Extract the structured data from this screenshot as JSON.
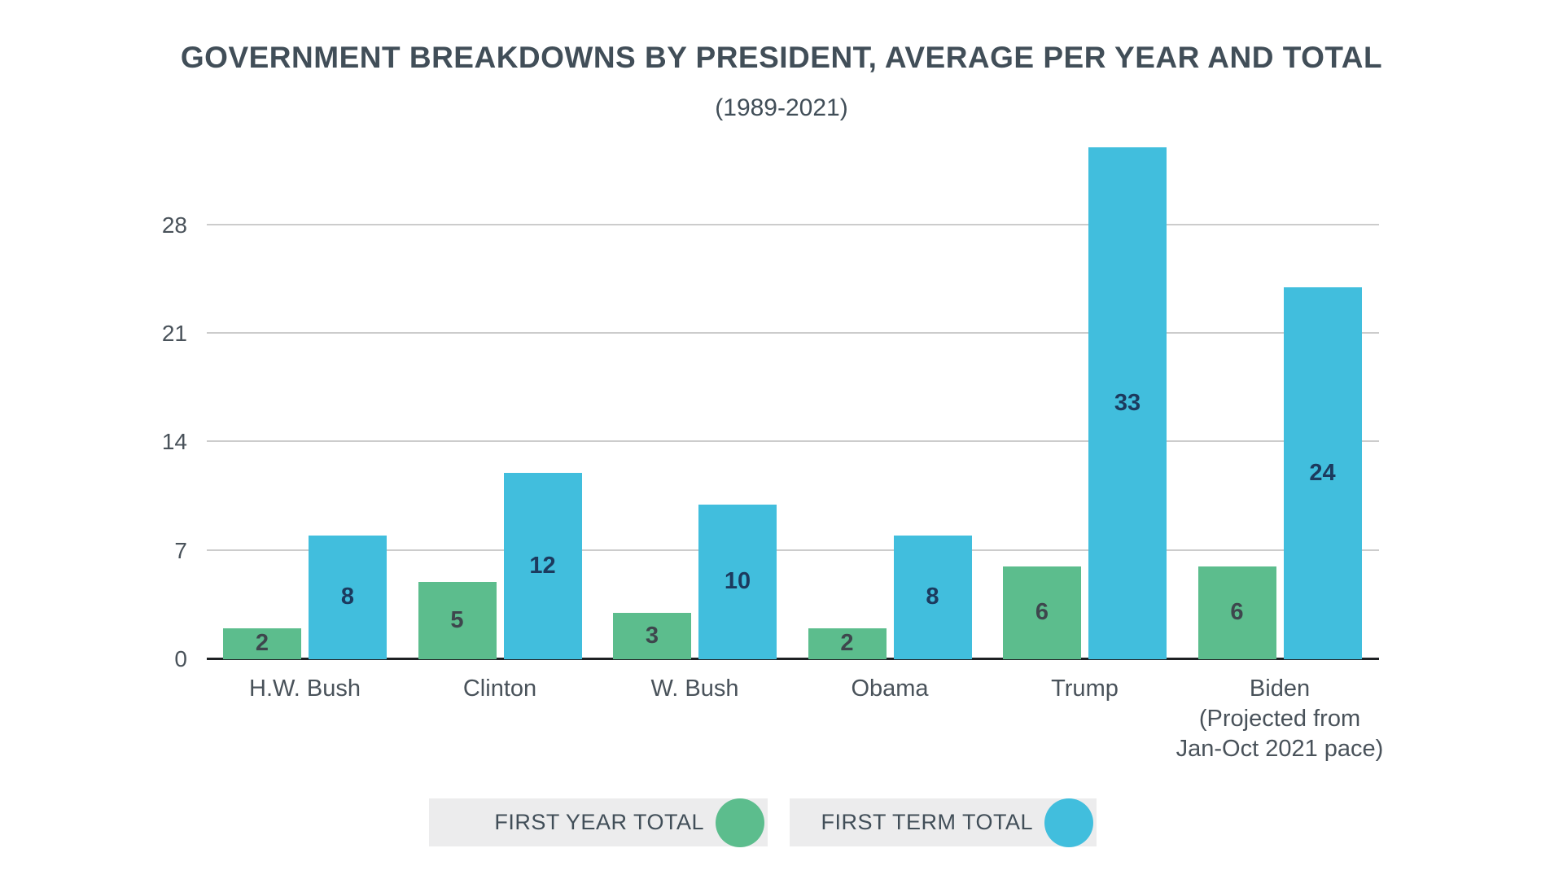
{
  "title": "GOVERNMENT BREAKDOWNS BY PRESIDENT, AVERAGE PER YEAR AND TOTAL",
  "subtitle": "(1989-2021)",
  "chart_data": {
    "type": "bar",
    "categories": [
      "H.W. Bush",
      "Clinton",
      "W. Bush",
      "Obama",
      "Trump",
      "Biden (Projected from Jan-Oct 2021 pace)"
    ],
    "x_label_lines": [
      [
        "H.W. Bush"
      ],
      [
        "Clinton"
      ],
      [
        "W. Bush"
      ],
      [
        "Obama"
      ],
      [
        "Trump"
      ],
      [
        "Biden",
        "(Projected from",
        "Jan-Oct 2021 pace)"
      ]
    ],
    "series": [
      {
        "name": "FIRST YEAR TOTAL",
        "color": "#5CBD8D",
        "label_color": "#3E464D",
        "values": [
          2,
          5,
          3,
          2,
          6,
          6
        ]
      },
      {
        "name": "FIRST TERM TOTAL",
        "color": "#41BEDD",
        "label_color": "#1C3A5E",
        "values": [
          8,
          12,
          10,
          8,
          33,
          24
        ]
      }
    ],
    "yticks": [
      0,
      7,
      14,
      21,
      28
    ],
    "ylim": [
      0,
      34
    ],
    "grid": true,
    "xlabel": "",
    "ylabel": "",
    "legend_position": "bottom"
  },
  "legend": {
    "items": [
      {
        "label": "FIRST YEAR TOTAL",
        "color": "#5CBD8D"
      },
      {
        "label": "FIRST TERM TOTAL",
        "color": "#41BEDD"
      }
    ]
  },
  "colors": {
    "background": "#FFFFFF",
    "title_text": "#414E58",
    "axis_text": "#49525A",
    "gridline": "#CCCCCC",
    "axis_line": "#1E2124",
    "legend_pill_bg": "#ECECED"
  }
}
